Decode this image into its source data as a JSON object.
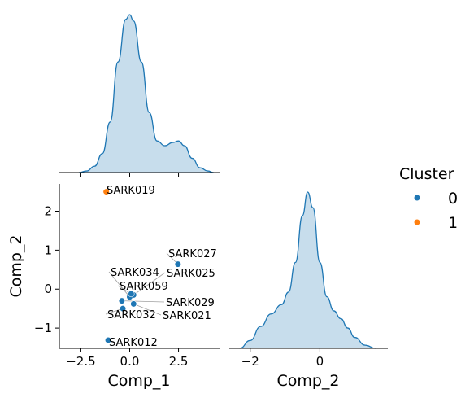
{
  "chart_data": {
    "type": "scatter",
    "title": "",
    "xlabel": "Comp_1",
    "ylabel": "Comp_2",
    "xlim": [
      -3.6,
      4.6
    ],
    "ylim": [
      -1.52,
      2.7
    ],
    "x_ticks": [
      -2.5,
      0.0,
      2.5
    ],
    "x_tick_labels": [
      "−2.5",
      "0.0",
      "2.5"
    ],
    "y_ticks": [
      2,
      1,
      0,
      -1
    ],
    "y_tick_labels": [
      "2",
      "1",
      "0",
      "−1"
    ],
    "legend": {
      "title": "Cluster",
      "placement": "right",
      "entries": [
        {
          "label": "0",
          "color": "#1f77b4"
        },
        {
          "label": "1",
          "color": "#ff7f0e"
        }
      ]
    },
    "points": [
      {
        "label": "SARK019",
        "x": -1.2,
        "y": 2.5,
        "cluster": 1
      },
      {
        "label": "SARK027",
        "x": 2.47,
        "y": 0.64,
        "cluster": 0
      },
      {
        "label": "SARK025",
        "x": 0.2,
        "y": -0.15,
        "cluster": 0
      },
      {
        "label": "SARK034",
        "x": 0.0,
        "y": -0.2,
        "cluster": 0
      },
      {
        "label": "SARK059",
        "x": 0.08,
        "y": -0.12,
        "cluster": 0
      },
      {
        "label": "SARK029",
        "x": -0.4,
        "y": -0.3,
        "cluster": 0
      },
      {
        "label": "SARK021",
        "x": 0.2,
        "y": -0.38,
        "cluster": 0
      },
      {
        "label": "SARK032",
        "x": -0.35,
        "y": -0.5,
        "cluster": 0
      },
      {
        "label": "SARK012",
        "x": -1.1,
        "y": -1.31,
        "cluster": 0
      }
    ],
    "kde_comp_1": {
      "xlabel": "",
      "x": [
        -2.6,
        -2.2,
        -1.8,
        -1.4,
        -1.0,
        -0.6,
        -0.2,
        0.0,
        0.2,
        0.6,
        1.0,
        1.4,
        1.8,
        2.2,
        2.5,
        2.8,
        3.2,
        3.6,
        4.0,
        4.3
      ],
      "density": [
        0.0,
        0.01,
        0.04,
        0.12,
        0.32,
        0.7,
        0.97,
        1.0,
        0.96,
        0.7,
        0.38,
        0.2,
        0.17,
        0.19,
        0.2,
        0.17,
        0.09,
        0.03,
        0.01,
        0.0
      ]
    },
    "kde_comp_2": {
      "xlabel": "Comp_2",
      "x_ticks": [
        -2,
        0
      ],
      "x_tick_labels": [
        "−2",
        "0"
      ],
      "xlim": [
        -2.6,
        1.95
      ],
      "x": [
        -2.3,
        -2.0,
        -1.7,
        -1.4,
        -1.1,
        -0.9,
        -0.7,
        -0.5,
        -0.35,
        -0.2,
        0.0,
        0.2,
        0.4,
        0.6,
        0.8,
        1.0,
        1.3,
        1.6
      ],
      "density": [
        0.0,
        0.05,
        0.14,
        0.22,
        0.28,
        0.36,
        0.55,
        0.85,
        1.0,
        0.9,
        0.55,
        0.33,
        0.24,
        0.19,
        0.13,
        0.07,
        0.02,
        0.0
      ]
    },
    "colors": {
      "cluster_0": "#1f77b4",
      "cluster_1": "#ff7f0e",
      "kde_fill": "#1f77b4",
      "connector": "#a0a0a0"
    }
  }
}
